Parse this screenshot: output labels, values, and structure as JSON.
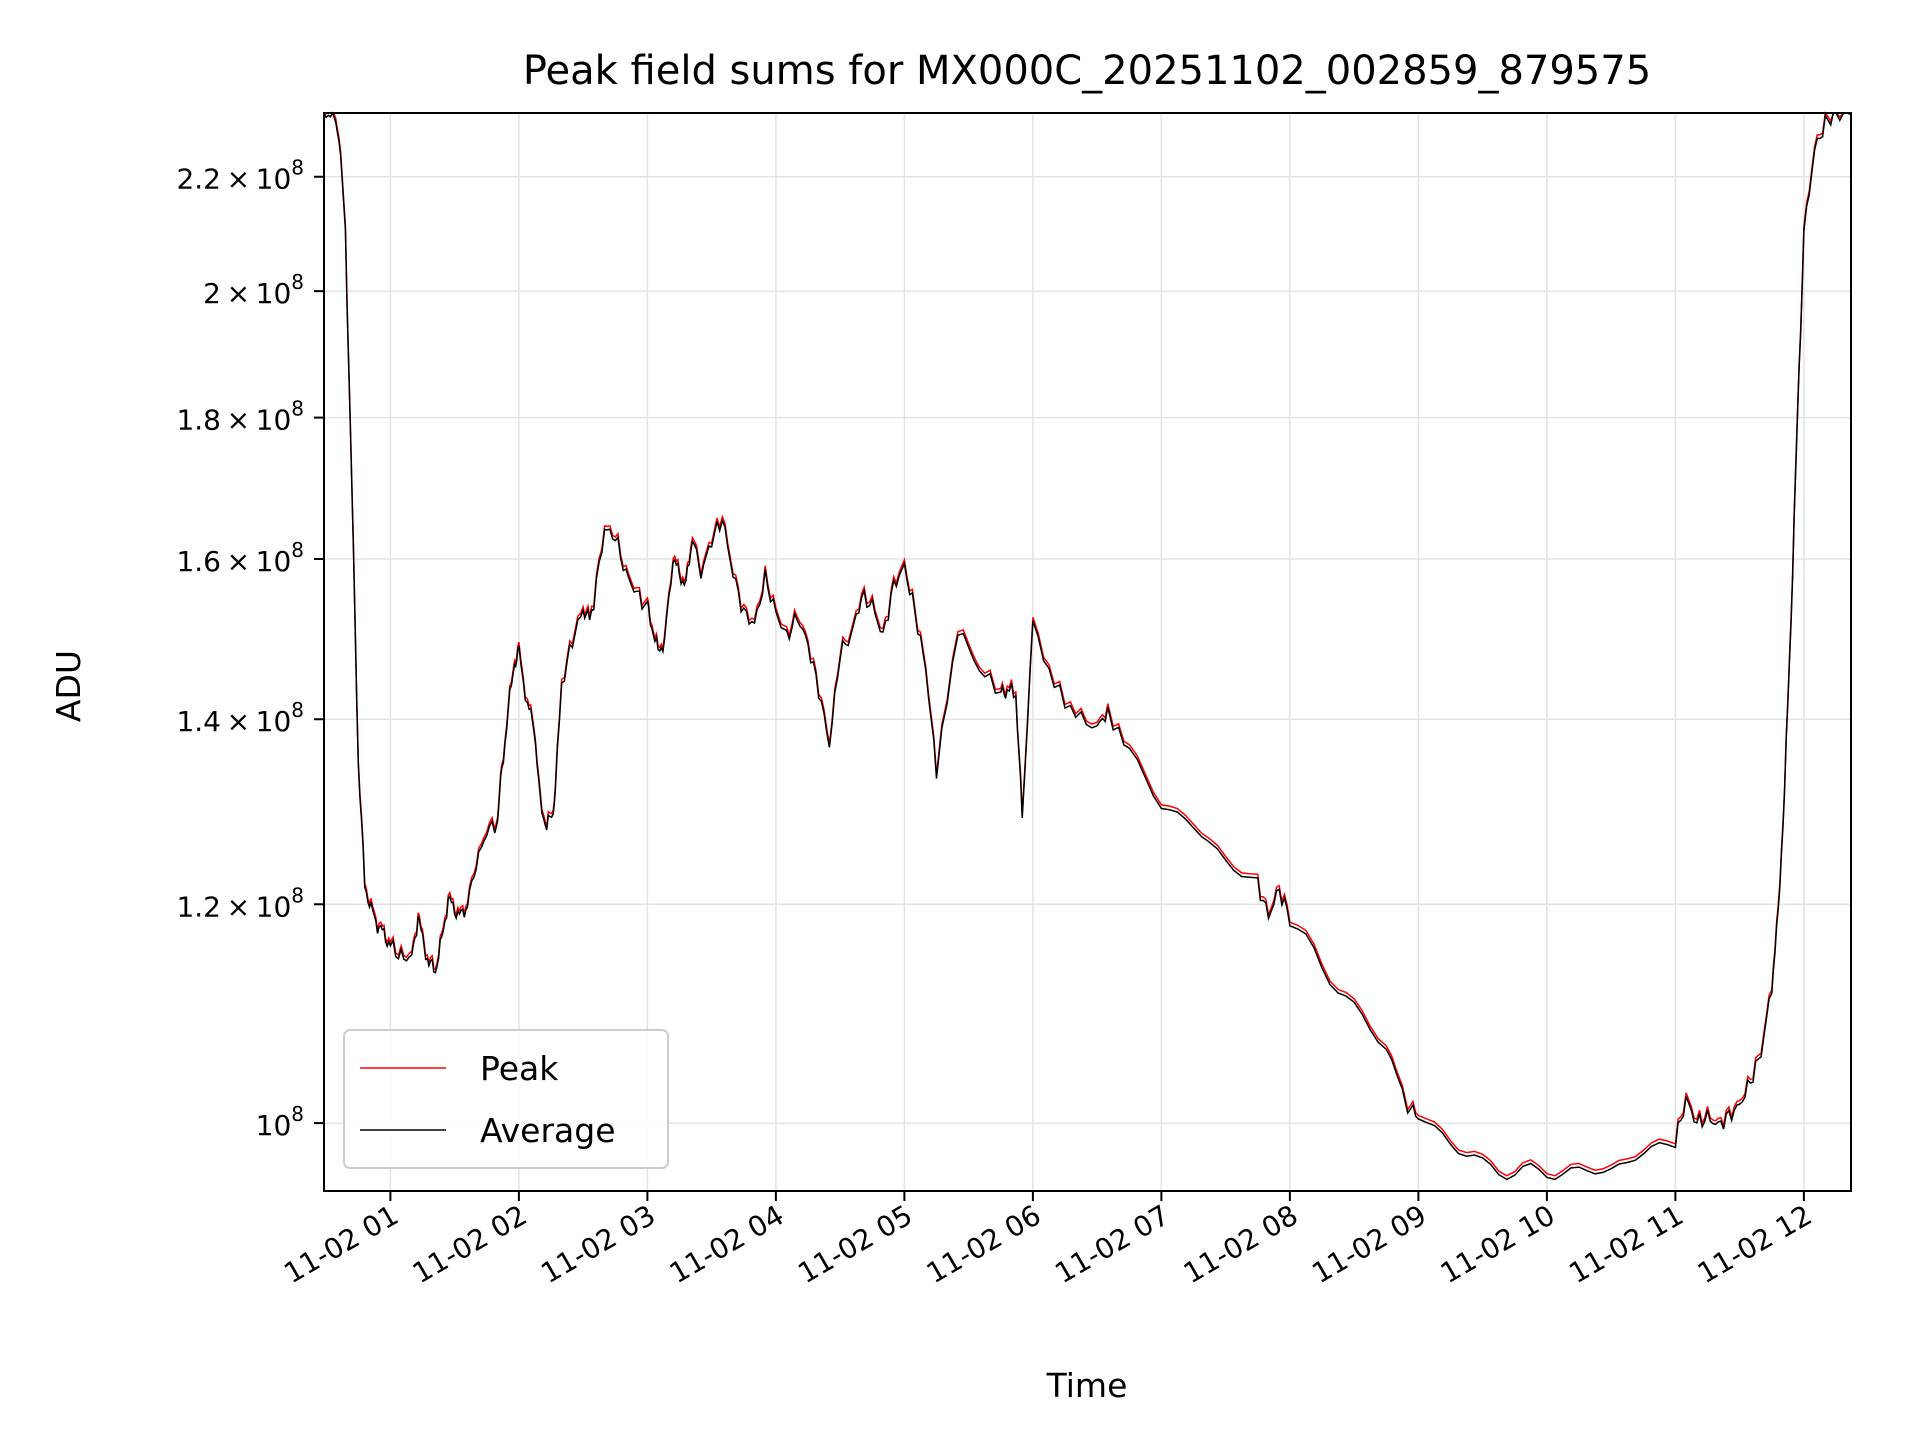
{
  "chart_data": {
    "type": "line",
    "title": "Peak field sums for MX000C_20251102_002859_879575",
    "xlabel": "Time",
    "ylabel": "ADU",
    "xlim": [
      "11-02 00:29",
      "11-02 12:22"
    ],
    "ylim": [
      94500000,
      232000000
    ],
    "yscale": "log",
    "grid": true,
    "legend_position": "lower-left",
    "x_ticks": [
      "11-02 01",
      "11-02 02",
      "11-02 03",
      "11-02 04",
      "11-02 05",
      "11-02 06",
      "11-02 07",
      "11-02 08",
      "11-02 09",
      "11-02 10",
      "11-02 11",
      "11-02 12"
    ],
    "y_ticks": [
      {
        "value": 100000000,
        "mant": "",
        "exp": "8"
      },
      {
        "value": 120000000,
        "mant": "1.2",
        "exp": "8"
      },
      {
        "value": 140000000,
        "mant": "1.4",
        "exp": "8"
      },
      {
        "value": 160000000,
        "mant": "1.6",
        "exp": "8"
      },
      {
        "value": 180000000,
        "mant": "1.8",
        "exp": "8"
      },
      {
        "value": 200000000,
        "mant": "2",
        "exp": "8"
      },
      {
        "value": 220000000,
        "mant": "2.2",
        "exp": "8"
      }
    ],
    "series": [
      {
        "name": "Peak",
        "color": "#ff0000"
      },
      {
        "name": "Average",
        "color": "#000000"
      }
    ],
    "x": [
      "11-02 00:29",
      "11-02 00:33",
      "11-02 00:36",
      "11-02 00:39",
      "11-02 00:42",
      "11-02 00:45",
      "11-02 00:48",
      "11-02 00:51",
      "11-02 00:54",
      "11-02 00:57",
      "11-02 01:00",
      "11-02 01:05",
      "11-02 01:10",
      "11-02 01:13",
      "11-02 01:15",
      "11-02 01:18",
      "11-02 01:21",
      "11-02 01:24",
      "11-02 01:27",
      "11-02 01:30",
      "11-02 01:33",
      "11-02 01:36",
      "11-02 01:40",
      "11-02 01:45",
      "11-02 01:50",
      "11-02 01:52",
      "11-02 01:55",
      "11-02 01:58",
      "11-02 02:00",
      "11-02 02:04",
      "11-02 02:07",
      "11-02 02:10",
      "11-02 02:13",
      "11-02 02:16",
      "11-02 02:18",
      "11-02 02:20",
      "11-02 02:25",
      "11-02 02:30",
      "11-02 02:33",
      "11-02 02:35",
      "11-02 02:40",
      "11-02 02:45",
      "11-02 02:50",
      "11-02 02:55",
      "11-02 03:00",
      "11-02 03:02",
      "11-02 03:05",
      "11-02 03:08",
      "11-02 03:12",
      "11-02 03:15",
      "11-02 03:18",
      "11-02 03:21",
      "11-02 03:25",
      "11-02 03:30",
      "11-02 03:35",
      "11-02 03:40",
      "11-02 03:45",
      "11-02 03:50",
      "11-02 03:55",
      "11-02 04:00",
      "11-02 04:05",
      "11-02 04:10",
      "11-02 04:15",
      "11-02 04:20",
      "11-02 04:25",
      "11-02 04:30",
      "11-02 04:35",
      "11-02 04:40",
      "11-02 04:45",
      "11-02 04:50",
      "11-02 04:55",
      "11-02 05:00",
      "11-02 05:05",
      "11-02 05:10",
      "11-02 05:15",
      "11-02 05:25",
      "11-02 05:35",
      "11-02 05:45",
      "11-02 05:48",
      "11-02 05:52",
      "11-02 05:55",
      "11-02 06:00",
      "11-02 06:10",
      "11-02 06:20",
      "11-02 06:30",
      "11-02 06:35",
      "11-02 06:45",
      "11-02 07:00",
      "11-02 07:15",
      "11-02 07:30",
      "11-02 07:45",
      "11-02 07:50",
      "11-02 07:55",
      "11-02 08:00",
      "11-02 08:15",
      "11-02 08:30",
      "11-02 08:45",
      "11-02 08:55",
      "11-02 09:00",
      "11-02 09:15",
      "11-02 09:30",
      "11-02 09:45",
      "11-02 10:00",
      "11-02 10:15",
      "11-02 10:30",
      "11-02 10:45",
      "11-02 11:00",
      "11-02 11:05",
      "11-02 11:10",
      "11-02 11:15",
      "11-02 11:20",
      "11-02 11:25",
      "11-02 11:30",
      "11-02 11:35",
      "11-02 11:40",
      "11-02 11:45",
      "11-02 11:48",
      "11-02 11:51",
      "11-02 11:54",
      "11-02 11:57",
      "11-02 12:00",
      "11-02 12:05",
      "11-02 12:10",
      "11-02 12:15",
      "11-02 12:22"
    ],
    "values": [
      232000000,
      232000000,
      228000000,
      210000000,
      170000000,
      135000000,
      122000000,
      119500000,
      118000000,
      117000000,
      116000000,
      114800000,
      114800000,
      118800000,
      116500000,
      114200000,
      113600000,
      116500000,
      120500000,
      119500000,
      118800000,
      120000000,
      124000000,
      127500000,
      128500000,
      134000000,
      141000000,
      147000000,
      148000000,
      141500000,
      139500000,
      130500000,
      128000000,
      129500000,
      136000000,
      144000000,
      149500000,
      153500000,
      152000000,
      154500000,
      164000000,
      163000000,
      158000000,
      155500000,
      153500000,
      151500000,
      148000000,
      149500000,
      160000000,
      158000000,
      156500000,
      163000000,
      158000000,
      162500000,
      165500000,
      158000000,
      153000000,
      151500000,
      157500000,
      153000000,
      150000000,
      152500000,
      149000000,
      143500000,
      137000000,
      148000000,
      150000000,
      155000000,
      154000000,
      150000000,
      156500000,
      159000000,
      153000000,
      146000000,
      134000000,
      151000000,
      146000000,
      143000000,
      143500000,
      143000000,
      129000000,
      151500000,
      144000000,
      140500000,
      139000000,
      141000000,
      136000000,
      130500000,
      128000000,
      124500000,
      122000000,
      118800000,
      121500000,
      118500000,
      114000000,
      110000000,
      106500000,
      101500000,
      100500000,
      98500000,
      96500000,
      96000000,
      96000000,
      96000000,
      96200000,
      97500000,
      98500000,
      102000000,
      100000000,
      100500000,
      99800000,
      100600000,
      101500000,
      103500000,
      106000000,
      112000000,
      119000000,
      132000000,
      152000000,
      180000000,
      210000000,
      225000000,
      230000000,
      232000000,
      232000000
    ]
  }
}
